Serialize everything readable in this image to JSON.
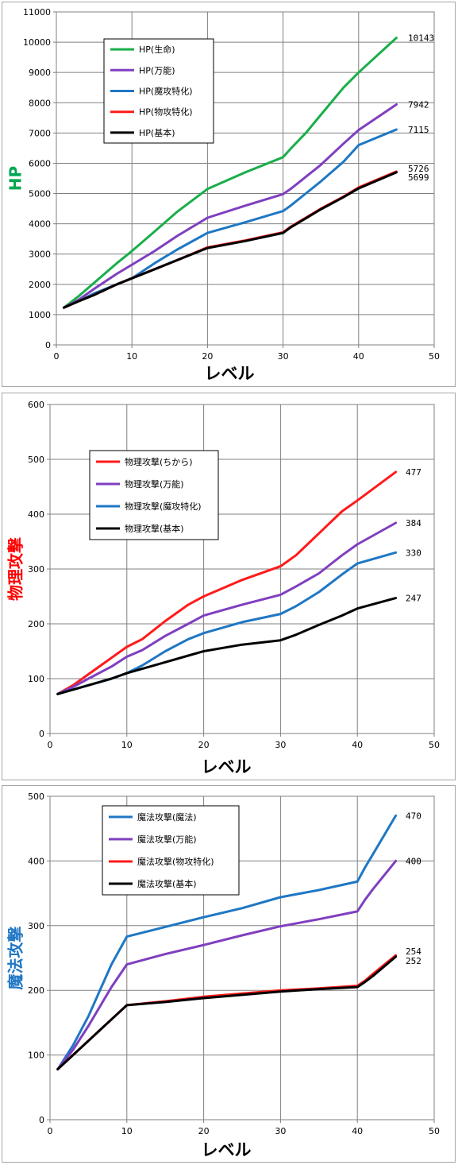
{
  "chart_data": [
    {
      "type": "line",
      "ylabel": "HP",
      "ylabel_color": "#00a651",
      "xlabel": "レベル",
      "xlim": [
        0,
        50
      ],
      "ylim": [
        0,
        11000
      ],
      "x_ticks": [
        "0",
        "10",
        "20",
        "30",
        "40",
        "50"
      ],
      "y_ticks": [
        "0",
        "1000",
        "2000",
        "3000",
        "4000",
        "5000",
        "6000",
        "7000",
        "8000",
        "9000",
        "10000",
        "11000"
      ],
      "grid": true,
      "legend_position": "top-left",
      "series": [
        {
          "name": "HP(生命)",
          "color": "#1aae4a",
          "end_label": "10143",
          "x": [
            1,
            3,
            5,
            8,
            10,
            13,
            16,
            20,
            25,
            30,
            31,
            33,
            35,
            38,
            40,
            45
          ],
          "y": [
            1230,
            1620,
            2050,
            2700,
            3100,
            3750,
            4400,
            5150,
            5700,
            6200,
            6480,
            7000,
            7600,
            8500,
            9000,
            10143
          ]
        },
        {
          "name": "HP(万能)",
          "color": "#7f3fbf",
          "end_label": "7942",
          "x": [
            1,
            3,
            5,
            8,
            10,
            13,
            16,
            20,
            25,
            30,
            31,
            33,
            35,
            38,
            40,
            45
          ],
          "y": [
            1230,
            1500,
            1850,
            2350,
            2650,
            3100,
            3600,
            4200,
            4600,
            4980,
            5150,
            5550,
            5950,
            6650,
            7100,
            7942
          ]
        },
        {
          "name": "HP(魔攻特化)",
          "color": "#1f77c4",
          "end_label": "7115",
          "x": [
            1,
            3,
            5,
            8,
            10,
            13,
            16,
            20,
            25,
            30,
            31,
            33,
            35,
            38,
            40,
            45
          ],
          "y": [
            1230,
            1450,
            1700,
            2000,
            2200,
            2700,
            3150,
            3700,
            4050,
            4420,
            4600,
            5000,
            5400,
            6050,
            6600,
            7115
          ]
        },
        {
          "name": "HP(物攻特化)",
          "color": "#ff1a1a",
          "end_label": "5726",
          "x": [
            1,
            3,
            5,
            8,
            10,
            13,
            16,
            20,
            25,
            30,
            31,
            33,
            35,
            38,
            40,
            45
          ],
          "y": [
            1230,
            1450,
            1650,
            2000,
            2200,
            2500,
            2800,
            3220,
            3450,
            3720,
            3900,
            4200,
            4500,
            4900,
            5200,
            5726
          ]
        },
        {
          "name": "HP(基本)",
          "color": "#000000",
          "end_label": "5699",
          "x": [
            1,
            3,
            5,
            8,
            10,
            13,
            16,
            20,
            25,
            30,
            31,
            33,
            35,
            38,
            40,
            45
          ],
          "y": [
            1230,
            1450,
            1650,
            2000,
            2200,
            2500,
            2800,
            3200,
            3430,
            3700,
            3880,
            4180,
            4480,
            4880,
            5170,
            5699
          ]
        }
      ]
    },
    {
      "type": "line",
      "ylabel": "物理攻撃",
      "ylabel_color": "#ff0000",
      "xlabel": "レベル",
      "xlim": [
        0,
        50
      ],
      "ylim": [
        0,
        600
      ],
      "x_ticks": [
        "0",
        "10",
        "20",
        "30",
        "40",
        "50"
      ],
      "y_ticks": [
        "0",
        "100",
        "200",
        "300",
        "400",
        "500",
        "600"
      ],
      "grid": true,
      "legend_position": "top-left",
      "series": [
        {
          "name": "物理攻撃(ちから)",
          "color": "#ff1a1a",
          "end_label": "477",
          "x": [
            1,
            3,
            5,
            8,
            10,
            12,
            15,
            18,
            20,
            25,
            30,
            32,
            35,
            38,
            40,
            45
          ],
          "y": [
            72,
            88,
            108,
            138,
            158,
            172,
            205,
            235,
            250,
            280,
            305,
            325,
            365,
            405,
            425,
            477
          ]
        },
        {
          "name": "物理攻撃(万能)",
          "color": "#7f3fbf",
          "end_label": "384",
          "x": [
            1,
            3,
            5,
            8,
            10,
            12,
            15,
            18,
            20,
            25,
            30,
            32,
            35,
            38,
            40,
            45
          ],
          "y": [
            72,
            85,
            100,
            122,
            140,
            152,
            178,
            200,
            215,
            235,
            253,
            268,
            292,
            325,
            345,
            384
          ]
        },
        {
          "name": "物理攻撃(魔攻特化)",
          "color": "#1f77c4",
          "end_label": "330",
          "x": [
            1,
            3,
            5,
            8,
            10,
            12,
            15,
            18,
            20,
            25,
            30,
            32,
            35,
            38,
            40,
            45
          ],
          "y": [
            72,
            80,
            88,
            100,
            110,
            124,
            150,
            172,
            183,
            203,
            218,
            232,
            258,
            290,
            310,
            330
          ]
        },
        {
          "name": "物理攻撃(基本)",
          "color": "#000000",
          "end_label": "247",
          "x": [
            1,
            3,
            5,
            8,
            10,
            12,
            15,
            18,
            20,
            25,
            30,
            32,
            35,
            38,
            40,
            45
          ],
          "y": [
            72,
            80,
            88,
            100,
            110,
            118,
            130,
            142,
            150,
            162,
            170,
            180,
            198,
            215,
            228,
            247
          ]
        }
      ]
    },
    {
      "type": "line",
      "ylabel": "魔法攻撃",
      "ylabel_color": "#1f77c4",
      "xlabel": "レベル",
      "xlim": [
        0,
        50
      ],
      "ylim": [
        0,
        500
      ],
      "x_ticks": [
        "0",
        "10",
        "20",
        "30",
        "40",
        "50"
      ],
      "y_ticks": [
        "0",
        "100",
        "200",
        "300",
        "400",
        "500"
      ],
      "grid": true,
      "legend_position": "top-left",
      "series": [
        {
          "name": "魔法攻撃(魔法)",
          "color": "#1f77c4",
          "end_label": "470",
          "x": [
            1,
            3,
            5,
            8,
            10,
            15,
            20,
            25,
            30,
            35,
            40,
            41,
            42,
            45
          ],
          "y": [
            78,
            115,
            160,
            240,
            283,
            298,
            313,
            327,
            344,
            355,
            368,
            390,
            410,
            470
          ]
        },
        {
          "name": "魔法攻撃(万能)",
          "color": "#7f3fbf",
          "end_label": "400",
          "x": [
            1,
            3,
            5,
            8,
            10,
            15,
            20,
            25,
            30,
            35,
            40,
            41,
            42,
            45
          ],
          "y": [
            78,
            108,
            145,
            205,
            240,
            256,
            270,
            285,
            299,
            310,
            322,
            340,
            356,
            400
          ]
        },
        {
          "name": "魔法攻撃(物攻特化)",
          "color": "#ff1a1a",
          "end_label": "254",
          "x": [
            1,
            3,
            5,
            8,
            10,
            15,
            20,
            25,
            30,
            35,
            40,
            41,
            42,
            45
          ],
          "y": [
            78,
            100,
            122,
            155,
            177,
            183,
            190,
            195,
            200,
            203,
            207,
            215,
            225,
            254
          ]
        },
        {
          "name": "魔法攻撃(基本)",
          "color": "#000000",
          "end_label": "252",
          "x": [
            1,
            3,
            5,
            8,
            10,
            15,
            20,
            25,
            30,
            35,
            40,
            41,
            42,
            45
          ],
          "y": [
            78,
            100,
            122,
            155,
            177,
            182,
            188,
            193,
            198,
            202,
            205,
            213,
            222,
            252
          ]
        }
      ]
    }
  ]
}
